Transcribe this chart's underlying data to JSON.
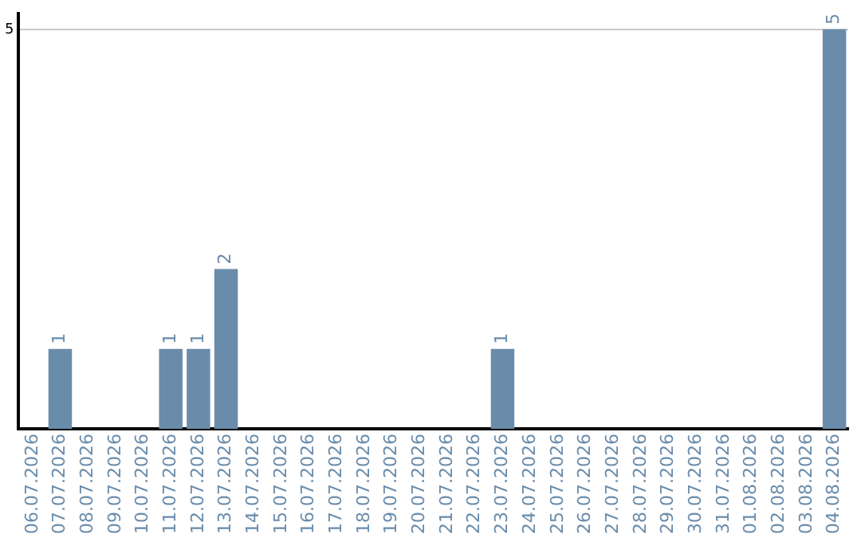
{
  "chart_data": {
    "type": "bar",
    "categories": [
      "06.07.2026",
      "07.07.2026",
      "08.07.2026",
      "09.07.2026",
      "10.07.2026",
      "11.07.2026",
      "12.07.2026",
      "13.07.2026",
      "14.07.2026",
      "15.07.2026",
      "16.07.2026",
      "17.07.2026",
      "18.07.2026",
      "19.07.2026",
      "20.07.2026",
      "21.07.2026",
      "22.07.2026",
      "23.07.2026",
      "24.07.2026",
      "25.07.2026",
      "26.07.2026",
      "27.07.2026",
      "28.07.2026",
      "29.07.2026",
      "30.07.2026",
      "31.07.2026",
      "01.08.2026",
      "02.08.2026",
      "03.08.2026",
      "04.08.2026"
    ],
    "values": [
      0,
      1,
      0,
      0,
      0,
      1,
      1,
      2,
      0,
      0,
      0,
      0,
      0,
      0,
      0,
      0,
      0,
      1,
      0,
      0,
      0,
      0,
      0,
      0,
      0,
      0,
      0,
      0,
      0,
      5
    ],
    "color": "#6a8cab",
    "value_labels": [
      null,
      "1",
      null,
      null,
      null,
      "1",
      "1",
      "2",
      null,
      null,
      null,
      null,
      null,
      null,
      null,
      null,
      null,
      "1",
      null,
      null,
      null,
      null,
      null,
      null,
      null,
      null,
      null,
      null,
      null,
      "5"
    ],
    "ylim": [
      0,
      5.2
    ],
    "yticks": [
      5
    ],
    "grid": "y",
    "legend": false
  }
}
